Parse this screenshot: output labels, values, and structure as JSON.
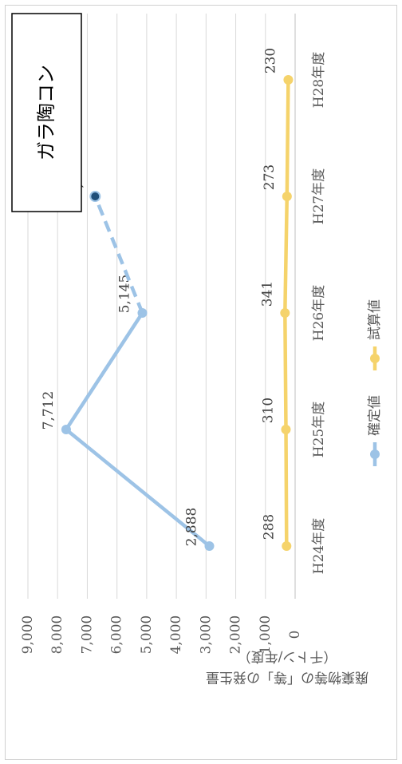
{
  "chart_data": {
    "type": "line",
    "title": "ガラ陶コン",
    "ylabel_line1": "廃棄物等の「等」の発生量",
    "ylabel_line2": "（千トン/年度）",
    "categories": [
      "H24年度",
      "H25年度",
      "H26年度",
      "H27年度",
      "H28年度"
    ],
    "ylim": [
      0,
      9000
    ],
    "yticks": [
      "0",
      "1,000",
      "2,000",
      "3,000",
      "4,000",
      "5,000",
      "6,000",
      "7,000",
      "8,000",
      "9,000"
    ],
    "grid": true,
    "legend_position": "bottom",
    "series": [
      {
        "name": "確定値",
        "color": "#9dc3e6",
        "values": [
          2888,
          7712,
          5145,
          null,
          null
        ],
        "labels": [
          "2,888",
          "7,712",
          "5,145",
          null,
          null
        ]
      },
      {
        "name": "確定値 (dashed projection)",
        "legend": false,
        "color": "#9dc3e6",
        "marker_color": "#1f4e79",
        "dashed": true,
        "values": [
          null,
          null,
          5145,
          6735,
          null
        ],
        "labels": [
          null,
          null,
          null,
          "6,735",
          null
        ]
      },
      {
        "name": "試算値",
        "color": "#f5d36b",
        "values": [
          288,
          310,
          341,
          273,
          230
        ],
        "labels": [
          "288",
          "310",
          "341",
          "273",
          "230"
        ]
      }
    ]
  }
}
